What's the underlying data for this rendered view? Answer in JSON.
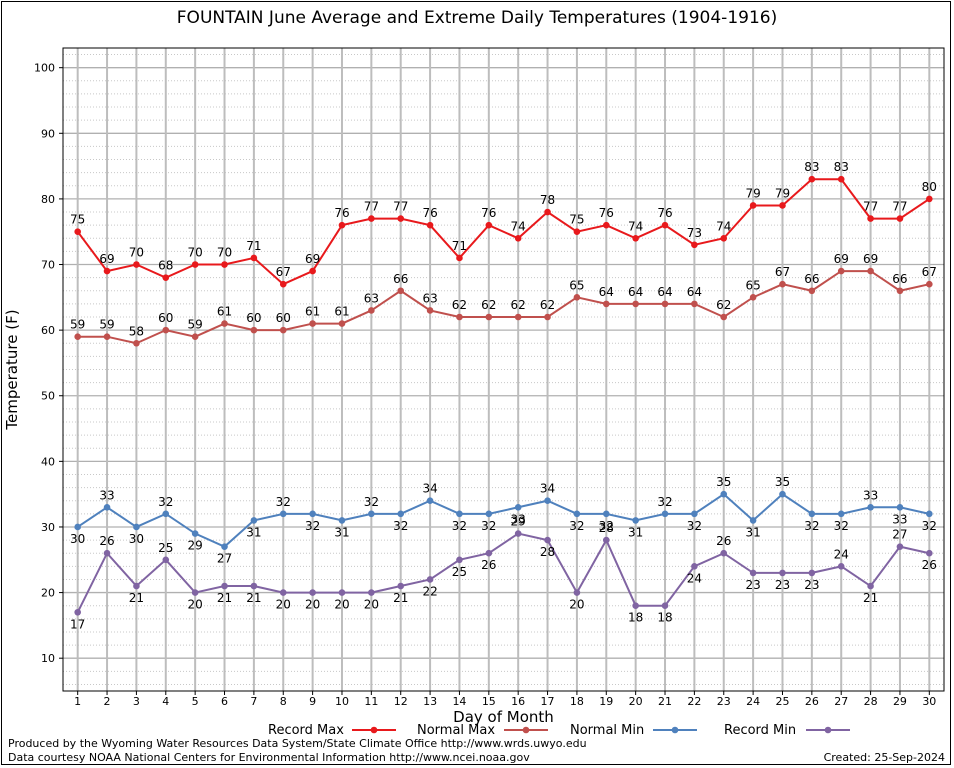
{
  "title": "FOUNTAIN June Average and Extreme Daily Temperatures (1904-1916)",
  "footer": {
    "produced_by": "Produced by the Wyoming Water Resources Data System/State Climate Office http://www.wrds.uwyo.edu",
    "courtesy": "Data courtesy NOAA National Centers for Environmental Information http://www.ncei.noaa.gov",
    "created": "Created:  25-Sep-2024"
  },
  "chart_data": {
    "type": "line",
    "title": "FOUNTAIN June Average and Extreme Daily Temperatures (1904-1916)",
    "xlabel": "Day of Month",
    "ylabel": "Temperature (F)",
    "x": [
      1,
      2,
      3,
      4,
      5,
      6,
      7,
      8,
      9,
      10,
      11,
      12,
      13,
      14,
      15,
      16,
      17,
      18,
      19,
      20,
      21,
      22,
      23,
      24,
      25,
      26,
      27,
      28,
      29,
      30
    ],
    "xlim": [
      0.5,
      30.5
    ],
    "ylim": [
      5,
      103
    ],
    "yticks": [
      10,
      20,
      30,
      40,
      50,
      60,
      70,
      80,
      90,
      100
    ],
    "grid": true,
    "legend_position": "bottom",
    "series": [
      {
        "name": "Record Max",
        "color": "#e8191c",
        "values": [
          75,
          69,
          70,
          68,
          70,
          70,
          71,
          67,
          69,
          76,
          77,
          77,
          76,
          71,
          76,
          74,
          78,
          75,
          76,
          74,
          76,
          73,
          74,
          79,
          79,
          83,
          83,
          77,
          77,
          80
        ]
      },
      {
        "name": "Normal Max",
        "color": "#c0504d",
        "values": [
          59,
          59,
          58,
          60,
          59,
          61,
          60,
          60,
          61,
          61,
          63,
          66,
          63,
          62,
          62,
          62,
          62,
          65,
          64,
          64,
          64,
          64,
          62,
          65,
          67,
          66,
          69,
          69,
          66,
          67
        ]
      },
      {
        "name": "Normal Min",
        "color": "#4f81bd",
        "values": [
          30,
          33,
          30,
          32,
          29,
          27,
          31,
          32,
          32,
          31,
          32,
          32,
          34,
          32,
          32,
          33,
          34,
          32,
          32,
          31,
          32,
          32,
          35,
          31,
          35,
          32,
          32,
          33,
          33,
          32
        ]
      },
      {
        "name": "Record Min",
        "color": "#8064a2",
        "values": [
          17,
          26,
          21,
          25,
          20,
          21,
          21,
          20,
          20,
          20,
          20,
          21,
          22,
          25,
          26,
          29,
          28,
          20,
          28,
          18,
          18,
          24,
          26,
          23,
          23,
          23,
          24,
          21,
          27,
          26
        ]
      }
    ]
  }
}
